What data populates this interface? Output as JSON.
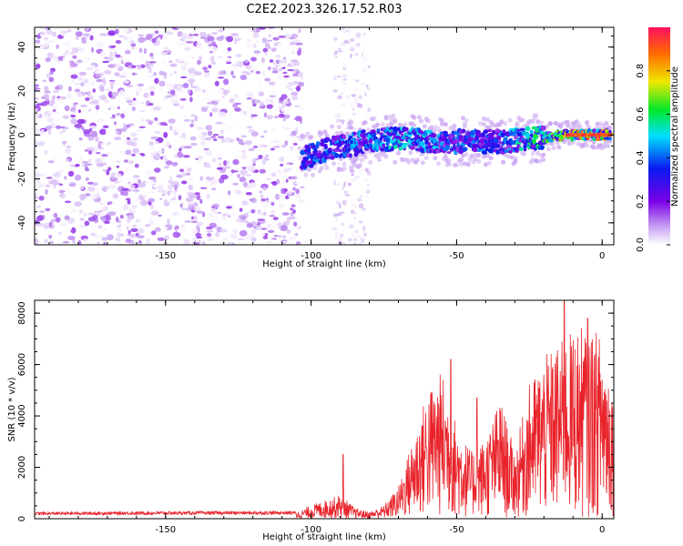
{
  "figure_title": "C2E2.2023.326.17.52.R03",
  "chart_data": [
    {
      "type": "heatmap",
      "title": "C2E2.2023.326.17.52.R03",
      "xlabel": "Height of straight line (km)",
      "ylabel": "Frequency (Hz)",
      "xlim": [
        -195,
        4
      ],
      "ylim": [
        -50,
        49
      ],
      "xticks": [
        -150,
        -100,
        -50,
        0
      ],
      "yticks": [
        -40,
        -20,
        0,
        20,
        40
      ],
      "colorbar": {
        "label": "Normalized spectral amplitude",
        "range": [
          0.0,
          1.0
        ],
        "ticks": [
          0.0,
          0.2,
          0.4,
          0.6,
          0.8
        ],
        "colormap": [
          "#ffffff",
          "#c9a4f2",
          "#7a00e6",
          "#0a1af0",
          "#00e0ff",
          "#00e82a",
          "#f0e800",
          "#ff6a00",
          "#ff1060"
        ]
      },
      "ridge": {
        "description": "signal track frequency center by height",
        "x": [
          -103,
          -95,
          -85,
          -75,
          -65,
          -55,
          -45,
          -35,
          -25,
          -15,
          -5,
          3
        ],
        "center_hz": [
          -11,
          -7,
          -4,
          -2,
          -2,
          -3,
          -3,
          -3,
          -2,
          0,
          0,
          0
        ],
        "peak_amplitude": [
          0.45,
          0.48,
          0.5,
          0.55,
          0.58,
          0.5,
          0.45,
          0.5,
          0.6,
          0.8,
          0.98,
          1.0
        ]
      },
      "noise_region_x": [
        -195,
        -103
      ]
    },
    {
      "type": "line",
      "xlabel": "Height of straight line (km)",
      "ylabel": "SNR (10 * v/v)",
      "xlim": [
        -195,
        4
      ],
      "ylim": [
        0,
        8500
      ],
      "xticks": [
        -150,
        -100,
        -50,
        0
      ],
      "yticks": [
        0,
        2000,
        4000,
        6000,
        8000
      ],
      "color": "#e8232a",
      "series": [
        {
          "name": "SNR envelope",
          "x": [
            -195,
            -150,
            -105,
            -100,
            -95,
            -90,
            -85,
            -80,
            -75,
            -70,
            -65,
            -60,
            -55,
            -50,
            -45,
            -40,
            -35,
            -30,
            -25,
            -20,
            -15,
            -10,
            -5,
            0,
            4
          ],
          "y": [
            200,
            220,
            230,
            500,
            700,
            900,
            400,
            250,
            500,
            1200,
            3000,
            4800,
            5500,
            3500,
            2500,
            3000,
            4500,
            2500,
            5000,
            6000,
            6500,
            7000,
            7200,
            6800,
            5000
          ]
        },
        {
          "name": "SNR spikes",
          "x": [
            -89,
            -52,
            -43,
            -13,
            -5
          ],
          "y": [
            2500,
            6200,
            4700,
            8500,
            7800
          ]
        }
      ]
    }
  ]
}
